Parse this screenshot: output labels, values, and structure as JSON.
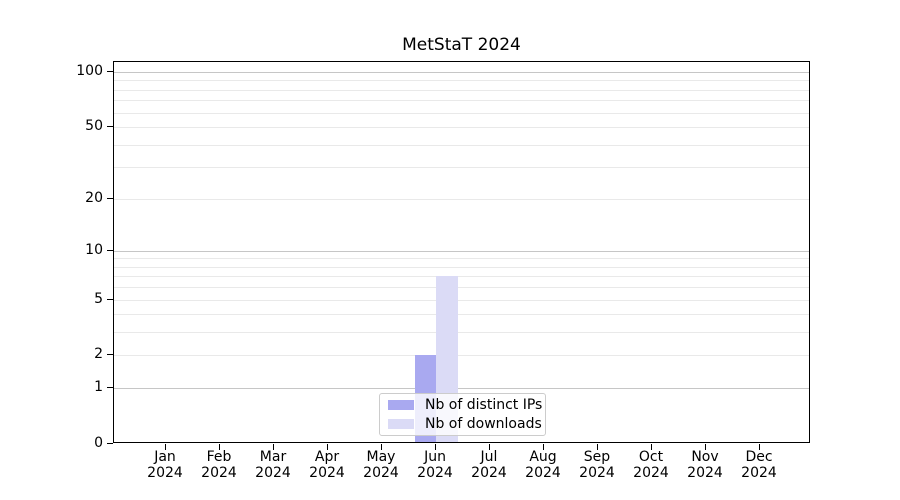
{
  "chart_data": {
    "type": "bar",
    "title": "MetStaT 2024",
    "x_tick_months": [
      "Jan",
      "Feb",
      "Mar",
      "Apr",
      "May",
      "Jun",
      "Jul",
      "Aug",
      "Sep",
      "Oct",
      "Nov",
      "Dec"
    ],
    "x_tick_year": "2024",
    "series": [
      {
        "name": "Nb of distinct IPs",
        "color": "#a9a9f0",
        "values": [
          0,
          0,
          0,
          0,
          0,
          2,
          0,
          0,
          0,
          0,
          0,
          0
        ]
      },
      {
        "name": "Nb of downloads",
        "color": "#dbdbf6",
        "values": [
          0,
          0,
          0,
          0,
          0,
          7,
          0,
          0,
          0,
          0,
          0,
          0
        ]
      }
    ],
    "y_axis": {
      "scale": "log1p",
      "tick_labels": [
        0,
        1,
        2,
        5,
        10,
        20,
        50,
        100
      ],
      "major_gridlines": [
        1,
        10,
        100
      ],
      "minor_gridlines": [
        2,
        3,
        4,
        5,
        6,
        7,
        8,
        9,
        20,
        30,
        40,
        50,
        60,
        70,
        80,
        90
      ]
    },
    "legend": {
      "position": "lower center"
    },
    "colors": {
      "major_grid": "#c6c6c6",
      "minor_grid": "#e9e9e9",
      "axis": "#000000",
      "text": "#000000",
      "background": "#ffffff"
    }
  }
}
